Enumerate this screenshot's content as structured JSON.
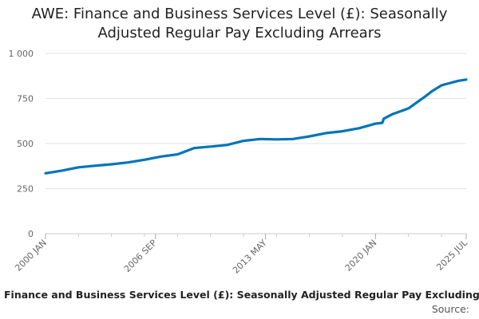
{
  "chart_data": {
    "type": "line",
    "title": "AWE: Finance and Business Services Level (£): Seasonally Adjusted Regular Pay Excluding Arrears",
    "xlabel": "",
    "ylabel": "",
    "ylim": [
      0,
      1000
    ],
    "y_ticks": [
      {
        "value": 0,
        "label": "0"
      },
      {
        "value": 250,
        "label": "250"
      },
      {
        "value": 500,
        "label": "500"
      },
      {
        "value": 750,
        "label": "750"
      },
      {
        "value": 1000,
        "label": "1 000"
      }
    ],
    "x_range": [
      "2000-01",
      "2025-07"
    ],
    "x_tick_labels": [
      "2000 JAN",
      "2006 SEP",
      "2013 MAY",
      "2020 JAN",
      "2025 JUL"
    ],
    "grid": "horizontal",
    "legend": "none",
    "series": [
      {
        "color": "#0075b8",
        "x": [
          "2000-01",
          "2001-01",
          "2002-01",
          "2003-01",
          "2004-01",
          "2005-01",
          "2006-01",
          "2007-01",
          "2008-01",
          "2009-01",
          "2010-01",
          "2011-01",
          "2012-01",
          "2013-01",
          "2014-01",
          "2015-01",
          "2016-01",
          "2017-01",
          "2018-01",
          "2019-01",
          "2020-01",
          "2020-06",
          "2020-07",
          "2021-01",
          "2022-01",
          "2023-01",
          "2023-06",
          "2024-01",
          "2025-01",
          "2025-07"
        ],
        "values": [
          335,
          350,
          368,
          377,
          385,
          395,
          410,
          428,
          440,
          475,
          483,
          492,
          515,
          525,
          523,
          525,
          540,
          558,
          568,
          585,
          610,
          615,
          638,
          662,
          695,
          760,
          790,
          823,
          848,
          855
        ]
      }
    ]
  },
  "footer": {
    "series_name": "Finance and Business Services Level (£): Seasonally Adjusted Regular Pay Excluding",
    "source_label": "Source:"
  },
  "colors": {
    "line": "#0075b8",
    "grid": "#e3e3e3",
    "axis_text": "#666666",
    "title_text": "#222222"
  }
}
